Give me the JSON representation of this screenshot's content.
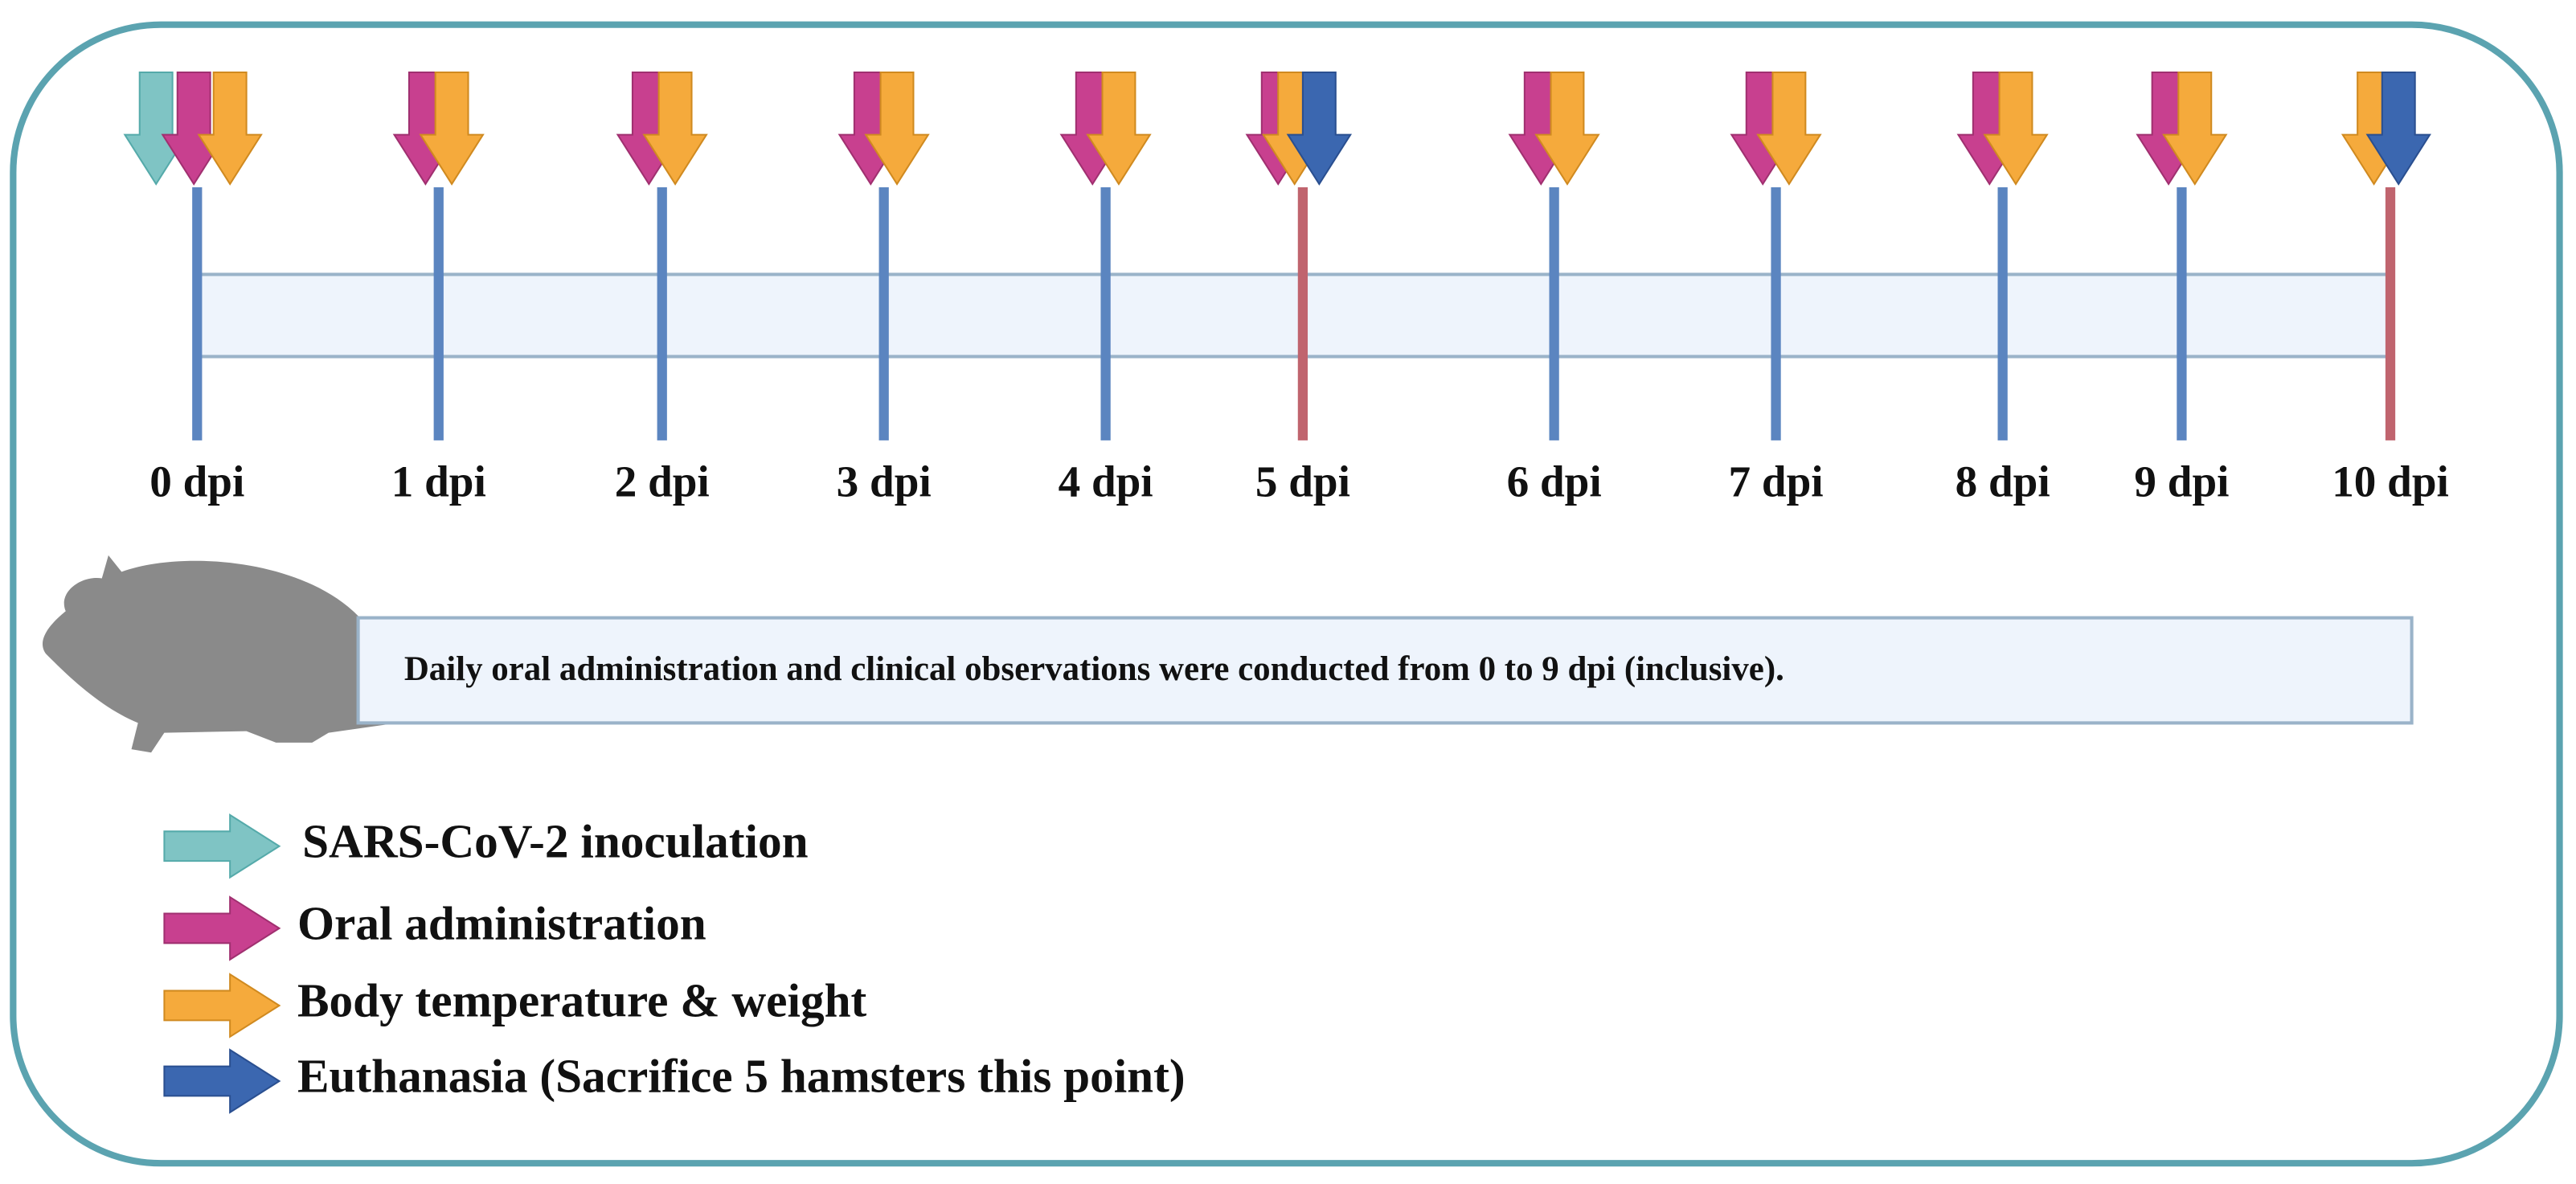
{
  "timeline": {
    "labels": [
      "0 dpi",
      "1 dpi",
      "2 dpi",
      "3 dpi",
      "4 dpi",
      "5 dpi",
      "6 dpi",
      "7 dpi",
      "8 dpi",
      "9 dpi",
      "10 dpi"
    ]
  },
  "note": "Daily oral administration and clinical observations were conducted from 0 to 9 dpi (inclusive).",
  "legend": [
    "SARS-CoV-2 inoculation",
    "Oral administration",
    "Body temperature & weight",
    "Euthanasia (Sacrifice 5 hamsters this point)"
  ]
}
